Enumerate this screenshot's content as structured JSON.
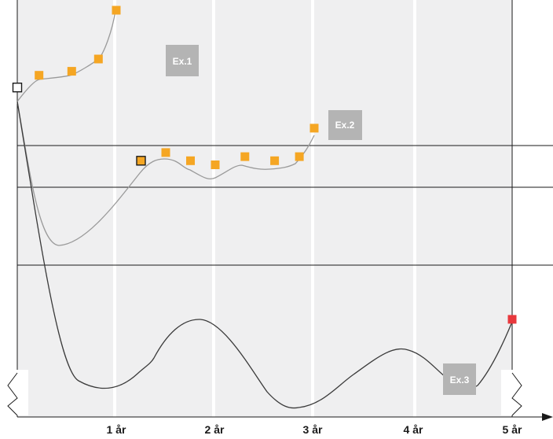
{
  "chart_data": {
    "type": "line",
    "x_unit": "år",
    "xlim": [
      0,
      5
    ],
    "x_ticks": [
      {
        "value": 1,
        "label": "1 år"
      },
      {
        "value": 2,
        "label": "2 år"
      },
      {
        "value": 3,
        "label": "3 år"
      },
      {
        "value": 4,
        "label": "4 år"
      },
      {
        "value": 5,
        "label": "5 år"
      }
    ],
    "grid": true,
    "colors": {
      "band": "#efeff0",
      "grid_line": "#ffffff",
      "marker": "#f5a623",
      "end_marker": "#e8383d",
      "start_marker": "#ffffff",
      "curve": "#3a3a3a",
      "label_box": "#b4b4b4"
    },
    "annotations": [
      {
        "label": "Ex.1",
        "series": 0
      },
      {
        "label": "Ex.2",
        "series": 1
      },
      {
        "label": "Ex.3",
        "series": 2
      }
    ],
    "series": [
      {
        "label": "Ex.1",
        "markers": [
          {
            "x": 0.0,
            "y": 0.81,
            "kind": "start"
          },
          {
            "x": 0.22,
            "y": 0.84
          },
          {
            "x": 0.55,
            "y": 0.85
          },
          {
            "x": 0.82,
            "y": 0.88
          },
          {
            "x": 1.0,
            "y": 1.0
          }
        ]
      },
      {
        "label": "Ex.2",
        "markers": [
          {
            "x": 1.25,
            "y": 0.63,
            "kind": "highlight"
          },
          {
            "x": 1.5,
            "y": 0.65
          },
          {
            "x": 1.75,
            "y": 0.63
          },
          {
            "x": 2.0,
            "y": 0.62
          },
          {
            "x": 2.3,
            "y": 0.64
          },
          {
            "x": 2.6,
            "y": 0.63
          },
          {
            "x": 2.85,
            "y": 0.64
          },
          {
            "x": 3.0,
            "y": 0.71
          }
        ]
      },
      {
        "label": "Ex.3",
        "markers": [
          {
            "x": 5.0,
            "y": 0.24,
            "kind": "end"
          }
        ]
      }
    ]
  }
}
